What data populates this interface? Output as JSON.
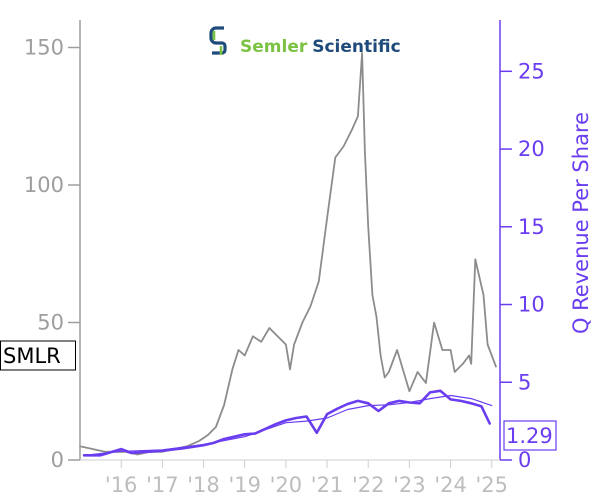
{
  "chart_data": {
    "type": "line",
    "logo": {
      "word1": "Semler",
      "word2": "Scientific",
      "mark_color": "#1e4b7a"
    },
    "ticker_label": "SMLR",
    "last_value_label": "1.29",
    "x_tick_labels": [
      "'16",
      "'17",
      "'18",
      "'19",
      "'20",
      "'21",
      "'22",
      "'23",
      "'24",
      "'25"
    ],
    "x_range": [
      2015.0,
      2025.2
    ],
    "left_axis": {
      "label": "",
      "ticks": [
        0,
        50,
        100,
        150
      ],
      "range": [
        0,
        160
      ],
      "color": "#9e9e9e"
    },
    "right_axis": {
      "label": "Q Revenue Per Share",
      "ticks": [
        0,
        5,
        10,
        15,
        20,
        25
      ],
      "range": [
        0,
        28.3
      ],
      "color": "#6a3df0"
    },
    "series": [
      {
        "axis": "left",
        "color": "#8c8c8c",
        "x": [
          2015.0,
          2015.3,
          2015.6,
          2015.9,
          2016.1,
          2016.4,
          2016.7,
          2017.0,
          2017.3,
          2017.6,
          2017.9,
          2018.1,
          2018.3,
          2018.5,
          2018.7,
          2018.85,
          2019.0,
          2019.2,
          2019.4,
          2019.6,
          2019.8,
          2020.0,
          2020.1,
          2020.2,
          2020.4,
          2020.6,
          2020.8,
          2021.0,
          2021.2,
          2021.4,
          2021.6,
          2021.75,
          2021.85,
          2021.92,
          2022.0,
          2022.1,
          2022.2,
          2022.3,
          2022.4,
          2022.5,
          2022.7,
          2022.9,
          2023.0,
          2023.2,
          2023.4,
          2023.6,
          2023.8,
          2024.0,
          2024.1,
          2024.3,
          2024.45,
          2024.5,
          2024.6,
          2024.8,
          2024.9,
          2025.1
        ],
        "values": [
          5,
          4,
          3,
          3,
          3,
          2,
          3,
          3,
          4,
          5,
          7,
          9,
          12,
          20,
          33,
          40,
          38,
          45,
          43,
          48,
          45,
          42,
          33,
          42,
          50,
          56,
          65,
          88,
          110,
          114,
          120,
          125,
          148,
          112,
          85,
          60,
          52,
          38,
          30,
          32,
          40,
          30,
          25,
          32,
          28,
          50,
          40,
          40,
          32,
          35,
          38,
          35,
          73,
          60,
          42,
          34
        ]
      },
      {
        "axis": "right",
        "color": "#6a3df0",
        "name": "",
        "x": [
          2015.1,
          2015.5,
          2016.0,
          2016.25,
          2016.5,
          2016.75,
          2017.0,
          2017.5,
          2018.0,
          2018.25,
          2018.5,
          2018.75,
          2019.0,
          2019.25,
          2019.5,
          2019.75,
          2020.0,
          2020.25,
          2020.5,
          2020.75,
          2021.0,
          2021.25,
          2021.5,
          2021.75,
          2022.0,
          2022.25,
          2022.5,
          2022.75,
          2023.0,
          2023.25,
          2023.5,
          2023.75,
          2024.0,
          2024.25,
          2024.5,
          2024.75,
          2024.95
        ],
        "values": [
          0.3,
          0.3,
          0.7,
          0.45,
          0.5,
          0.55,
          0.6,
          0.75,
          0.95,
          1.1,
          1.35,
          1.5,
          1.65,
          1.7,
          2.0,
          2.3,
          2.55,
          2.7,
          2.8,
          1.75,
          2.95,
          3.3,
          3.6,
          3.8,
          3.65,
          3.15,
          3.65,
          3.8,
          3.7,
          3.65,
          4.35,
          4.45,
          3.9,
          3.8,
          3.65,
          3.45,
          2.35
        ]
      },
      {
        "axis": "right",
        "color": "#6a3df0",
        "name": "",
        "x": [
          2015.1,
          2016.0,
          2017.0,
          2018.0,
          2019.0,
          2020.0,
          2020.5,
          2021.0,
          2021.5,
          2022.0,
          2022.5,
          2023.0,
          2023.5,
          2024.0,
          2024.5,
          2025.0
        ],
        "values": [
          0.3,
          0.55,
          0.65,
          1.0,
          1.5,
          2.4,
          2.5,
          2.7,
          3.25,
          3.5,
          3.55,
          3.7,
          3.95,
          4.15,
          3.95,
          3.5
        ]
      }
    ]
  }
}
